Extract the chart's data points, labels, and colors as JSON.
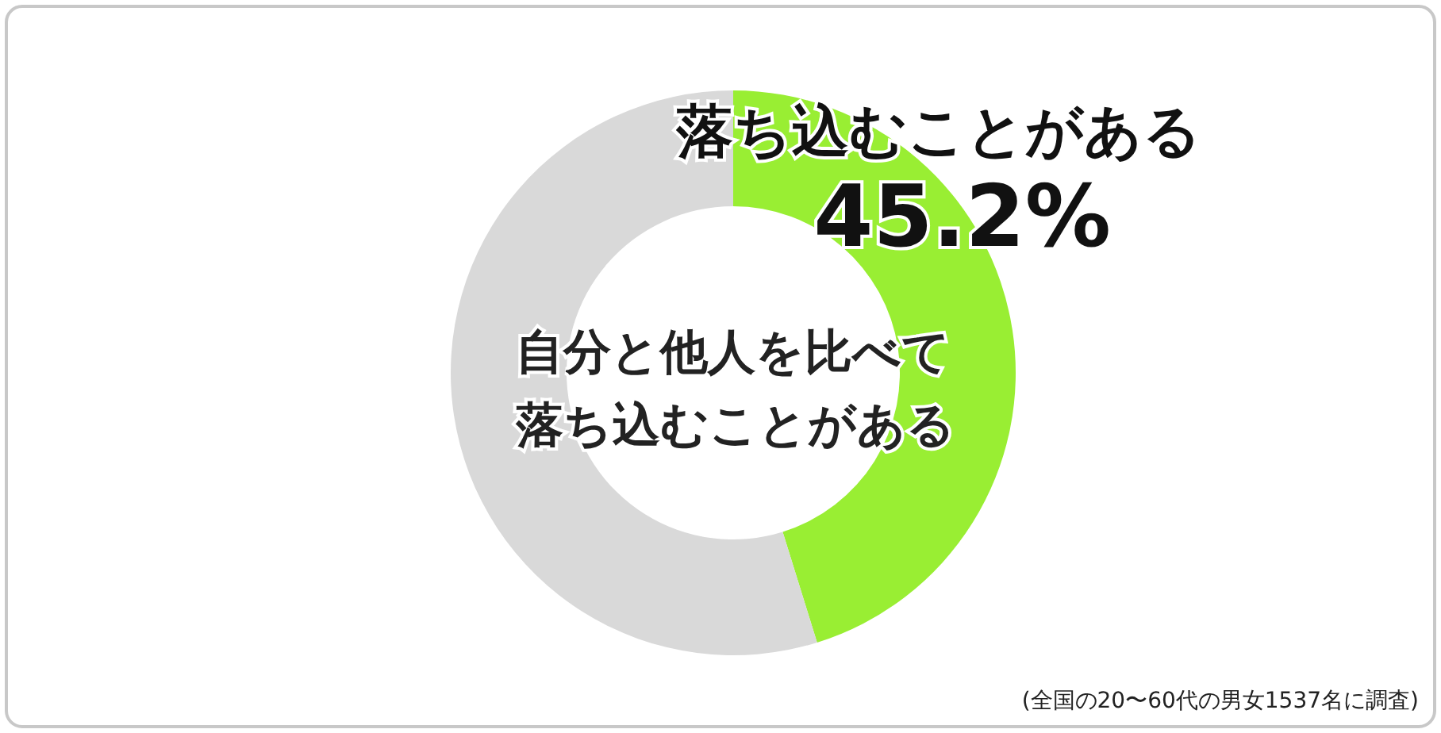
{
  "chart_data": {
    "type": "donut",
    "title": "自分と他人を比べて落ち込むことがある",
    "categories": [
      "落ち込むことがある",
      null
    ],
    "values": [
      45.2,
      54.8
    ],
    "colors": [
      "#99ee33",
      "#d9d9d9"
    ],
    "value_labels": [
      "45.2%",
      null
    ],
    "annotations": [
      "(全国の20〜60代の男女1537名に調査)"
    ]
  }
}
